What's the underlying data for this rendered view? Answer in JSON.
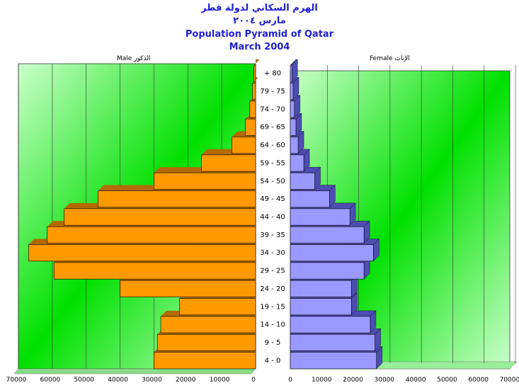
{
  "titles": {
    "arabic_line1": "الهرم السكاني لدولة قطر",
    "arabic_line2": "مارس ٢٠٠٤",
    "english_line1": "Population Pyramid of Qatar",
    "english_line2": "March 2004"
  },
  "panels": {
    "male_label": "Male الذكور",
    "female_label": "Female الإناث"
  },
  "colors": {
    "male_front": "#ff9900",
    "male_side": "#b36b00",
    "female_front": "#9999ff",
    "female_side": "#4d4db3",
    "background_light": "#ccffcc",
    "background_bright": "#00e000"
  },
  "chart_data": {
    "type": "bar",
    "orientation": "horizontal-pyramid",
    "categories": [
      "4 - 0",
      "9 - 5",
      "14 - 10",
      "19 - 15",
      "24 - 20",
      "29 - 25",
      "34 - 30",
      "39 - 35",
      "44 - 40",
      "49 - 45",
      "54 - 50",
      "59 - 55",
      "64 - 60",
      "69 - 65",
      "74 - 70",
      "79 - 75",
      "+ 80"
    ],
    "series": [
      {
        "name": "Male",
        "values": [
          30000,
          29000,
          28000,
          22500,
          40000,
          59500,
          67000,
          61500,
          56500,
          46500,
          30000,
          16000,
          7000,
          3000,
          1700,
          900,
          500
        ]
      },
      {
        "name": "Female",
        "values": [
          27500,
          27000,
          25500,
          19500,
          19500,
          23500,
          26500,
          23500,
          19000,
          12500,
          7800,
          4300,
          2500,
          1800,
          1300,
          900,
          500
        ]
      }
    ],
    "male_axis": {
      "ticks": [
        70000,
        60000,
        50000,
        40000,
        30000,
        20000,
        10000,
        0
      ],
      "xlim": [
        0,
        70000
      ],
      "reversed": true
    },
    "female_axis": {
      "ticks": [
        0,
        10000,
        20000,
        30000,
        40000,
        50000,
        60000,
        70000
      ],
      "xlim": [
        0,
        70000
      ]
    },
    "grid": true
  }
}
